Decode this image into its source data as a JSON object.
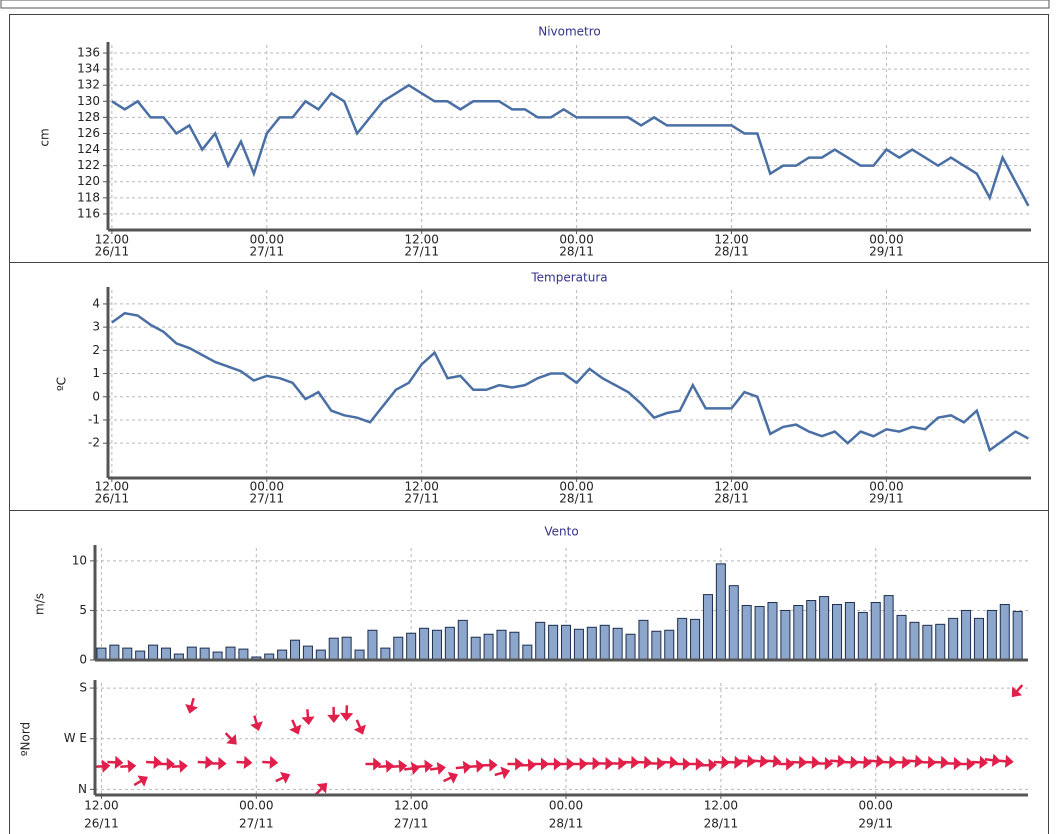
{
  "chart_data": [
    {
      "type": "line",
      "title": "Nivometro",
      "y_label": "cm",
      "color": "#4a6fa5",
      "x": [
        0,
        1,
        2,
        3,
        4,
        5,
        6,
        7,
        8,
        9,
        10,
        11,
        12,
        13,
        14,
        15,
        16,
        17,
        18,
        19,
        20,
        21,
        22,
        23,
        24,
        25,
        26,
        27,
        28,
        29,
        30,
        31,
        32,
        33,
        34,
        35,
        36,
        37,
        38,
        39,
        40,
        41,
        42,
        43,
        44,
        45,
        46,
        47,
        48,
        49,
        50,
        51,
        52,
        53,
        54,
        55,
        56,
        57,
        58,
        59,
        60,
        61,
        62,
        63,
        64,
        65,
        66,
        67,
        68,
        69,
        70,
        71
      ],
      "values": [
        130,
        129,
        130,
        128,
        128,
        126,
        127,
        124,
        126,
        122,
        125,
        121,
        126,
        128,
        128,
        130,
        129,
        131,
        130,
        126,
        128,
        130,
        131,
        132,
        131,
        130,
        130,
        129,
        130,
        130,
        130,
        129,
        129,
        128,
        128,
        129,
        128,
        128,
        128,
        128,
        128,
        127,
        128,
        127,
        127,
        127,
        127,
        127,
        127,
        126,
        126,
        121,
        122,
        122,
        123,
        123,
        124,
        123,
        122,
        122,
        124,
        123,
        124,
        123,
        122,
        123,
        122,
        121,
        118,
        123,
        120,
        117
      ],
      "xlim": [
        -0.3,
        71.2
      ],
      "ylim": [
        114,
        137
      ],
      "yticks": [
        116,
        118,
        120,
        122,
        124,
        126,
        128,
        130,
        132,
        134,
        136
      ],
      "xticks": [
        {
          "value": 0,
          "label": "12.00"
        },
        {
          "value": 12,
          "label": "00.00"
        },
        {
          "value": 24,
          "label": "12.00"
        },
        {
          "value": 36,
          "label": "00.00"
        },
        {
          "value": 48,
          "label": "12.00"
        },
        {
          "value": 60,
          "label": "00.00"
        }
      ],
      "xtick_dates": [
        "26/11",
        "27/11",
        "27/11",
        "28/11",
        "28/11",
        "29/11"
      ],
      "grid": true
    },
    {
      "type": "line",
      "title": "Temperatura",
      "y_label": "ºC",
      "color": "#4a6fa5",
      "x": [
        0,
        1,
        2,
        3,
        4,
        5,
        6,
        7,
        8,
        9,
        10,
        11,
        12,
        13,
        14,
        15,
        16,
        17,
        18,
        19,
        20,
        21,
        22,
        23,
        24,
        25,
        26,
        27,
        28,
        29,
        30,
        31,
        32,
        33,
        34,
        35,
        36,
        37,
        38,
        39,
        40,
        41,
        42,
        43,
        44,
        45,
        46,
        47,
        48,
        49,
        50,
        51,
        52,
        53,
        54,
        55,
        56,
        57,
        58,
        59,
        60,
        61,
        62,
        63,
        64,
        65,
        66,
        67,
        68,
        69,
        70,
        71
      ],
      "values": [
        3.2,
        3.6,
        3.5,
        3.1,
        2.8,
        2.3,
        2.1,
        1.8,
        1.5,
        1.3,
        1.1,
        0.7,
        0.9,
        0.8,
        0.6,
        -0.1,
        0.2,
        -0.6,
        -0.8,
        -0.9,
        -1.1,
        -0.4,
        0.3,
        0.6,
        1.4,
        1.9,
        0.8,
        0.9,
        0.3,
        0.3,
        0.5,
        0.4,
        0.5,
        0.8,
        1.0,
        1.0,
        0.6,
        1.2,
        0.8,
        0.5,
        0.2,
        -0.3,
        -0.9,
        -0.7,
        -0.6,
        0.5,
        -0.5,
        -0.5,
        -0.5,
        0.2,
        0.0,
        -1.6,
        -1.3,
        -1.2,
        -1.5,
        -1.7,
        -1.5,
        -2.0,
        -1.5,
        -1.7,
        -1.4,
        -1.5,
        -1.3,
        -1.4,
        -0.9,
        -0.8,
        -1.1,
        -0.6,
        -2.3,
        -1.9,
        -1.5,
        -1.8
      ],
      "xlim": [
        -0.3,
        71.2
      ],
      "ylim": [
        -3.5,
        4.6
      ],
      "yticks": [
        -2,
        -1,
        0,
        1,
        2,
        3,
        4
      ],
      "xticks": [
        {
          "value": 0,
          "label": "12.00"
        },
        {
          "value": 12,
          "label": "00.00"
        },
        {
          "value": 24,
          "label": "12.00"
        },
        {
          "value": 36,
          "label": "00.00"
        },
        {
          "value": 48,
          "label": "12.00"
        },
        {
          "value": 60,
          "label": "00.00"
        }
      ],
      "xtick_dates": [
        "26/11",
        "27/11",
        "27/11",
        "28/11",
        "28/11",
        "29/11"
      ],
      "grid": true
    },
    {
      "type": "bar",
      "title": "Vento",
      "y_label": "m/s",
      "color": "#8ca6cc",
      "x": [
        0,
        1,
        2,
        3,
        4,
        5,
        6,
        7,
        8,
        9,
        10,
        11,
        12,
        13,
        14,
        15,
        16,
        17,
        18,
        19,
        20,
        21,
        22,
        23,
        24,
        25,
        26,
        27,
        28,
        29,
        30,
        31,
        32,
        33,
        34,
        35,
        36,
        37,
        38,
        39,
        40,
        41,
        42,
        43,
        44,
        45,
        46,
        47,
        48,
        49,
        50,
        51,
        52,
        53,
        54,
        55,
        56,
        57,
        58,
        59,
        60,
        61,
        62,
        63,
        64,
        65,
        66,
        67,
        68,
        69,
        70,
        71
      ],
      "values": [
        1.2,
        1.5,
        1.2,
        0.9,
        1.5,
        1.2,
        0.6,
        1.3,
        1.2,
        0.8,
        1.3,
        1.1,
        0.3,
        0.6,
        1.0,
        2.0,
        1.4,
        1.0,
        2.2,
        2.3,
        1.0,
        3.0,
        1.2,
        2.3,
        2.7,
        3.2,
        3.0,
        3.3,
        4.0,
        2.3,
        2.6,
        3.0,
        2.8,
        1.5,
        3.8,
        3.5,
        3.5,
        3.1,
        3.3,
        3.5,
        3.2,
        2.6,
        4.0,
        2.9,
        3.0,
        4.2,
        4.1,
        6.6,
        9.7,
        7.5,
        5.5,
        5.4,
        5.8,
        5.0,
        5.5,
        6.0,
        6.4,
        5.6,
        5.8,
        4.8,
        5.8,
        6.5,
        4.5,
        3.8,
        3.5,
        3.6,
        4.2,
        5.0,
        4.2,
        5.0,
        5.6,
        4.9
      ],
      "xlim": [
        -0.5,
        71.8
      ],
      "ylim": [
        0,
        11.3
      ],
      "yticks": [
        0,
        5,
        10
      ],
      "grid": true
    },
    {
      "type": "arrows",
      "y_label": "ºNord",
      "color": "#e0204a",
      "x": [
        0,
        1,
        2,
        3,
        4,
        5,
        6,
        7,
        8,
        9,
        10,
        11,
        12,
        13,
        14,
        15,
        16,
        17,
        18,
        19,
        20,
        21,
        22,
        23,
        24,
        25,
        26,
        27,
        28,
        29,
        30,
        31,
        32,
        33,
        34,
        35,
        36,
        37,
        38,
        39,
        40,
        41,
        42,
        43,
        44,
        45,
        46,
        47,
        48,
        49,
        50,
        51,
        52,
        53,
        54,
        55,
        56,
        57,
        58,
        59,
        60,
        61,
        62,
        63,
        64,
        65,
        66,
        67,
        68,
        69,
        70,
        71
      ],
      "values": [
        41,
        48,
        41,
        14,
        48,
        45,
        41,
        150,
        48,
        46,
        91,
        48,
        119,
        48,
        20,
        112,
        130,
        0,
        134,
        137,
        112,
        45,
        41,
        41,
        37,
        41,
        37,
        20,
        39,
        41,
        43,
        29,
        45,
        43,
        45,
        45,
        45,
        45,
        46,
        46,
        46,
        48,
        48,
        46,
        48,
        45,
        45,
        43,
        48,
        48,
        50,
        50,
        50,
        45,
        48,
        48,
        46,
        50,
        48,
        48,
        50,
        48,
        48,
        50,
        48,
        48,
        46,
        45,
        48,
        52,
        50,
        176
      ],
      "xlim": [
        -0.5,
        71.8
      ],
      "ylim": [
        -10,
        189
      ],
      "yticks": [
        {
          "value": 0,
          "label": "N"
        },
        {
          "value": 90,
          "label": "W E"
        },
        {
          "value": 180,
          "label": "S"
        }
      ],
      "xticks": [
        {
          "value": 0,
          "label": "12.00"
        },
        {
          "value": 12,
          "label": "00.00"
        },
        {
          "value": 24,
          "label": "12.00"
        },
        {
          "value": 36,
          "label": "00.00"
        },
        {
          "value": 48,
          "label": "12.00"
        },
        {
          "value": 60,
          "label": "00.00"
        }
      ],
      "xtick_dates": [
        "26/11",
        "27/11",
        "27/11",
        "28/11",
        "28/11",
        "29/11"
      ],
      "grid": true
    }
  ]
}
